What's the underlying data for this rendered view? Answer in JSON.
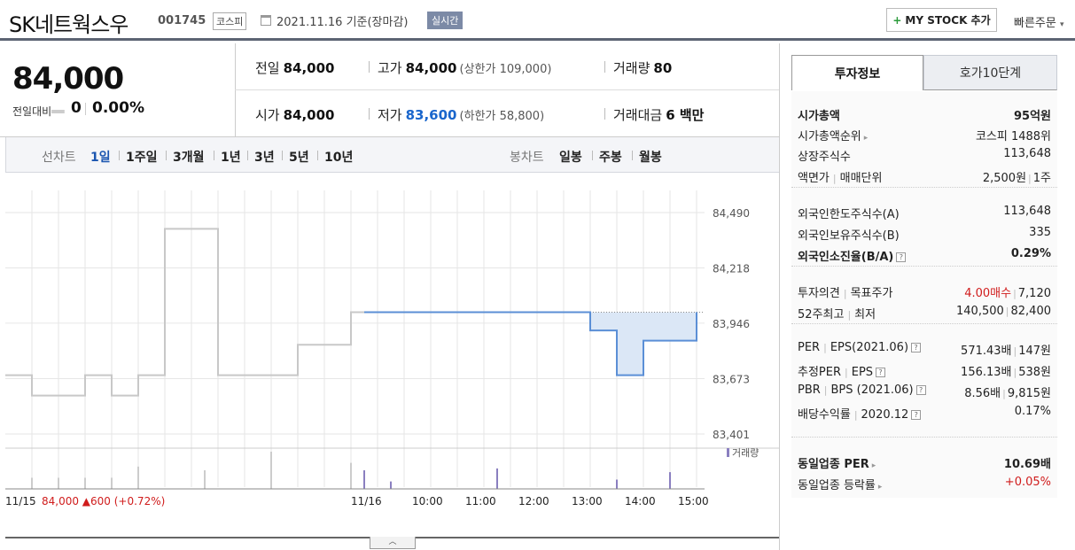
{
  "header": {
    "stock_name": "SK네트웍스우",
    "stock_code": "001745",
    "market": "코스피",
    "date_text": "2021.11.16 기준(장마감)",
    "realtime": "실시간",
    "mystock_label": "MY STOCK 추가",
    "quick_order": "빠른주문"
  },
  "price": {
    "current": "84,000",
    "change_label": "전일대비",
    "change_value": "0",
    "change_pct": "0.00%"
  },
  "stats": {
    "prev_label": "전일",
    "prev_value": "84,000",
    "high_label": "고가",
    "high_value": "84,000",
    "upper_limit": "(상한가 109,000)",
    "volume_label": "거래량",
    "volume_value": "80",
    "open_label": "시가",
    "open_value": "84,000",
    "low_label": "저가",
    "low_value": "83,600",
    "lower_limit": "(하한가 58,800)",
    "amount_label": "거래대금",
    "amount_value": "6 백만"
  },
  "chart_tabs": {
    "line_label": "선차트",
    "periods": [
      "1일",
      "1주일",
      "3개월",
      "1년",
      "3년",
      "5년",
      "10년"
    ],
    "candle_label": "봉차트",
    "candles": [
      "일봉",
      "주봉",
      "월봉"
    ]
  },
  "chart_data": {
    "type": "line",
    "y_ticks": [
      "84,490",
      "84,218",
      "83,946",
      "83,673",
      "83,401"
    ],
    "ylim": [
      83401,
      84490
    ],
    "x_ticks": [
      "11/16",
      "10:00",
      "11:00",
      "12:00",
      "13:00",
      "14:00",
      "15:00"
    ],
    "prev_day_label": "11/15",
    "prev_day_price": "84,000",
    "prev_day_change": "▲600 (+0.72%)",
    "volume_legend": "거래량",
    "prev_day_series": {
      "name": "11/15",
      "points": [
        [
          0,
          83690
        ],
        [
          1,
          83690
        ],
        [
          1,
          83590
        ],
        [
          3,
          83590
        ],
        [
          3,
          83690
        ],
        [
          4,
          83690
        ],
        [
          4,
          83590
        ],
        [
          5,
          83590
        ],
        [
          5,
          83690
        ],
        [
          6,
          83690
        ],
        [
          6,
          84410
        ],
        [
          8,
          84410
        ],
        [
          8,
          83690
        ],
        [
          11,
          83690
        ],
        [
          11,
          83840
        ],
        [
          13,
          83840
        ],
        [
          13,
          84000
        ],
        [
          13.5,
          84000
        ]
      ]
    },
    "today_series": {
      "name": "11/16",
      "points": [
        [
          13.5,
          84000
        ],
        [
          22,
          84000
        ],
        [
          22,
          83910
        ],
        [
          23,
          83910
        ],
        [
          23,
          83690
        ],
        [
          24,
          83690
        ],
        [
          24,
          83860
        ],
        [
          26,
          83860
        ],
        [
          26,
          84000
        ]
      ]
    },
    "reference_price": 84000,
    "volume_bars": [
      {
        "x": 1,
        "v": 0.3
      },
      {
        "x": 2,
        "v": 0.3
      },
      {
        "x": 3,
        "v": 0.3
      },
      {
        "x": 4,
        "v": 0.3
      },
      {
        "x": 5,
        "v": 0.6
      },
      {
        "x": 7.5,
        "v": 0.5
      },
      {
        "x": 10,
        "v": 1.0
      },
      {
        "x": 13,
        "v": 0.7
      },
      {
        "x": 13.5,
        "v": 0.5
      },
      {
        "x": 14.5,
        "v": 0.2
      },
      {
        "x": 18.5,
        "v": 0.55
      },
      {
        "x": 23,
        "v": 0.25
      },
      {
        "x": 25,
        "v": 0.45
      }
    ]
  },
  "right_panel": {
    "tab_active": "투자정보",
    "tab_other": "호가10단계",
    "rows": [
      {
        "k": "시가총액",
        "v": "95억원",
        "bold": true
      },
      {
        "k": "시가총액순위",
        "v": "코스피 1488위",
        "arrow": true
      },
      {
        "k": "상장주식수",
        "v": "113,648"
      },
      {
        "k": "액면가",
        "k2": "매매단위",
        "v": "2,500원",
        "v2": "1주"
      },
      {
        "k": "외국인한도주식수(A)",
        "v": "113,648"
      },
      {
        "k": "외국인보유주식수(B)",
        "v": "335"
      },
      {
        "k": "외국인소진율(B/A)",
        "v": "0.29%",
        "bold": true,
        "q": true
      },
      {
        "k": "투자의견",
        "k2": "목표주가",
        "v": "4.00매수",
        "v2": "7,120",
        "red": true
      },
      {
        "k": "52주최고",
        "k2": "최저",
        "v": "140,500",
        "v2": "82,400"
      },
      {
        "k": "PER",
        "k2": "EPS(2021.06)",
        "v": "571.43배",
        "v2": "147원",
        "q": true
      },
      {
        "k": "추정PER",
        "k2": "EPS",
        "v": "156.13배",
        "v2": "538원",
        "q": true
      },
      {
        "k": "PBR",
        "k2": "BPS (2021.06)",
        "v": "8.56배",
        "v2": "9,815원",
        "q": true
      },
      {
        "k": "배당수익률",
        "k2": "2020.12",
        "v": "0.17%",
        "q": true
      },
      {
        "k": "동일업종 PER",
        "v": "10.69배",
        "bold": true,
        "arrow": true
      },
      {
        "k": "동일업종 등락률",
        "v": "+0.05%",
        "red": true,
        "arrow": true
      }
    ]
  }
}
